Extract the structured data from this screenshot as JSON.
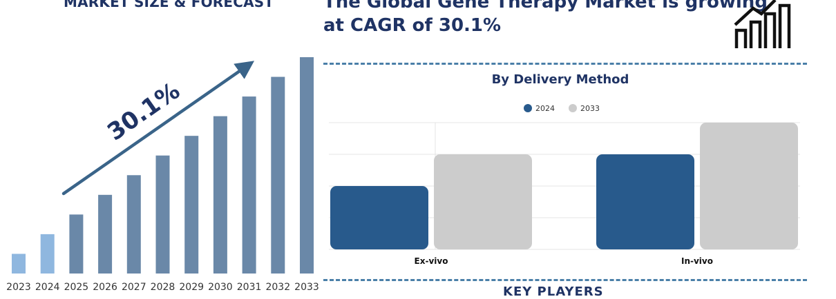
{
  "market": {
    "title": "MARKET SIZE & FORECAST",
    "cagr_label": "30.1%"
  },
  "headline": {
    "line1": "The Global Gene Therapy Market is growing",
    "line2": "at CAGR of 30.1%"
  },
  "icons": {
    "growth": "bar-chart-growth-arrow-icon"
  },
  "key_players": {
    "heading": "KEY PLAYERS"
  },
  "colors": {
    "navy": "#1f3364",
    "forecast_bar": "#6a88a8",
    "history_bar": "#8fb7df",
    "series_2024": "#285a8c",
    "series_2033": "#cccccc",
    "divider": "#4a7fa8"
  },
  "chart_data": [
    {
      "type": "bar",
      "title": "MARKET SIZE & FORECAST",
      "categories": [
        "2023",
        "2024",
        "2025",
        "2026",
        "2027",
        "2028",
        "2029",
        "2030",
        "2031",
        "2032",
        "2033"
      ],
      "values": [
        1,
        2,
        3,
        4,
        5,
        6,
        7,
        8,
        9,
        10,
        11
      ],
      "historical": [
        "2023",
        "2024"
      ],
      "annotation": "30.1%",
      "xlabel": "",
      "ylabel": "",
      "grid": false
    },
    {
      "type": "bar",
      "title": "By Delivery Method",
      "categories": [
        "Ex-vivo",
        "In-vivo"
      ],
      "series": [
        {
          "name": "2024",
          "values": [
            2,
            3
          ]
        },
        {
          "name": "2033",
          "values": [
            3,
            4
          ]
        }
      ],
      "ylim": [
        0,
        4
      ],
      "grid": true,
      "legend": "top-center",
      "xlabel": "",
      "ylabel": ""
    }
  ]
}
